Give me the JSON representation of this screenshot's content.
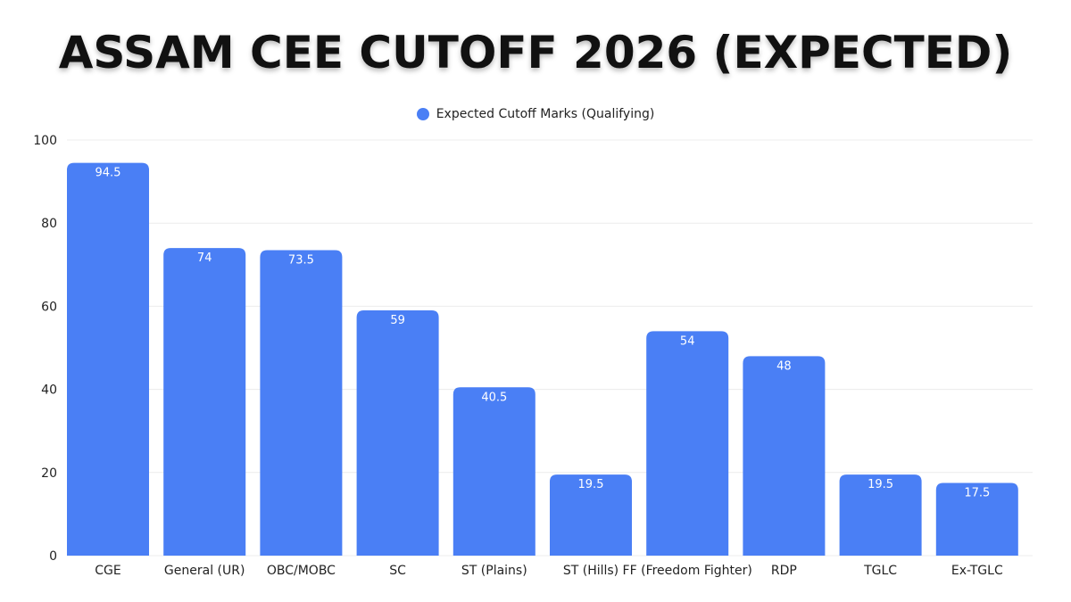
{
  "title": "ASSAM CEE CUTOFF 2026 (EXPECTED)",
  "colors": {
    "bar": "#4a7ff5",
    "grid": "#ececec",
    "label_inside": "#ffffff"
  },
  "chart_data": {
    "type": "bar",
    "title": "ASSAM CEE CUTOFF 2026 (EXPECTED)",
    "xlabel": "",
    "ylabel": "",
    "ylim": [
      0,
      100
    ],
    "yticks": [
      0,
      20,
      40,
      60,
      80,
      100
    ],
    "grid": true,
    "legend_position": "top-center",
    "categories": [
      "CGE",
      "General (UR)",
      "OBC/MOBC",
      "SC",
      "ST (Plains)",
      "ST (Hills)",
      "FF (Freedom Fighter)",
      "RDP",
      "TGLC",
      "Ex-TGLC"
    ],
    "series": [
      {
        "name": "Expected Cutoff Marks (Qualifying)",
        "values": [
          94.5,
          74,
          73.5,
          59,
          40.5,
          19.5,
          54,
          48,
          19.5,
          17.5
        ],
        "labels": [
          "94.5",
          "74",
          "73.5",
          "59",
          "40.5",
          "19.5",
          "54",
          "48",
          "19.5",
          "17.5"
        ]
      }
    ]
  }
}
